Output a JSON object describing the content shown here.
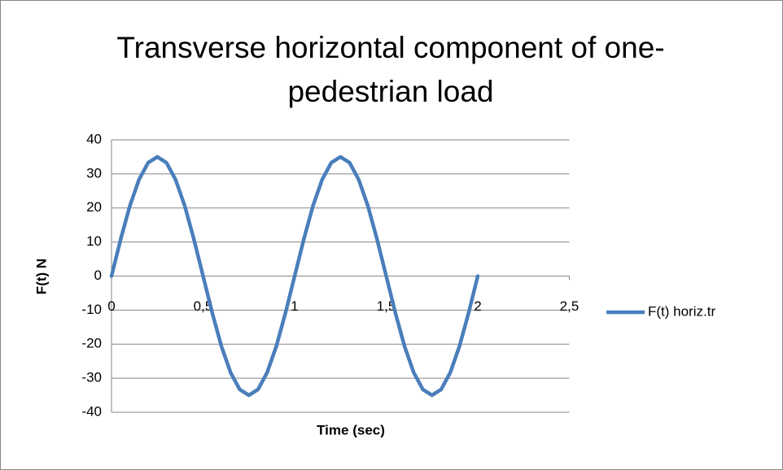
{
  "chart_data": {
    "type": "line",
    "title": "Transverse horizontal component of one-pedestrian load",
    "x_label": "Time (sec)",
    "y_label": "F(t)  N",
    "x": [
      0,
      0.05,
      0.1,
      0.15,
      0.2,
      0.25,
      0.3,
      0.35,
      0.4,
      0.45,
      0.5,
      0.55,
      0.6,
      0.65,
      0.7,
      0.75,
      0.8,
      0.85,
      0.9,
      0.95,
      1,
      1.05,
      1.1,
      1.15,
      1.2,
      1.25,
      1.3,
      1.35,
      1.4,
      1.45,
      1.5,
      1.55,
      1.6,
      1.65,
      1.7,
      1.75,
      1.8,
      1.85,
      1.9,
      1.95,
      2
    ],
    "series": [
      {
        "name": "F(t) horiz.tr",
        "color": "#4a7ebb",
        "values": [
          0,
          10.8,
          20.6,
          28.3,
          33.3,
          35,
          33.3,
          28.3,
          20.6,
          10.8,
          0,
          -10.8,
          -20.6,
          -28.3,
          -33.3,
          -35,
          -33.3,
          -28.3,
          -20.6,
          -10.8,
          0,
          10.8,
          20.6,
          28.3,
          33.3,
          35,
          33.3,
          28.3,
          20.6,
          10.8,
          0,
          -10.8,
          -20.6,
          -28.3,
          -33.3,
          -35,
          -33.3,
          -28.3,
          -20.6,
          -10.8,
          0
        ]
      }
    ],
    "xlim": [
      0,
      2.5
    ],
    "xticks": [
      0,
      {
        "value": 0.5,
        "label": "0,5"
      },
      1,
      {
        "value": 1.5,
        "label": "1,5"
      },
      2,
      {
        "value": 2.5,
        "label": "2,5"
      }
    ],
    "ylim": [
      -40,
      40
    ],
    "yticks": [
      -40,
      -30,
      -20,
      -10,
      0,
      10,
      20,
      30,
      40
    ],
    "grid": true,
    "legend": "right"
  }
}
